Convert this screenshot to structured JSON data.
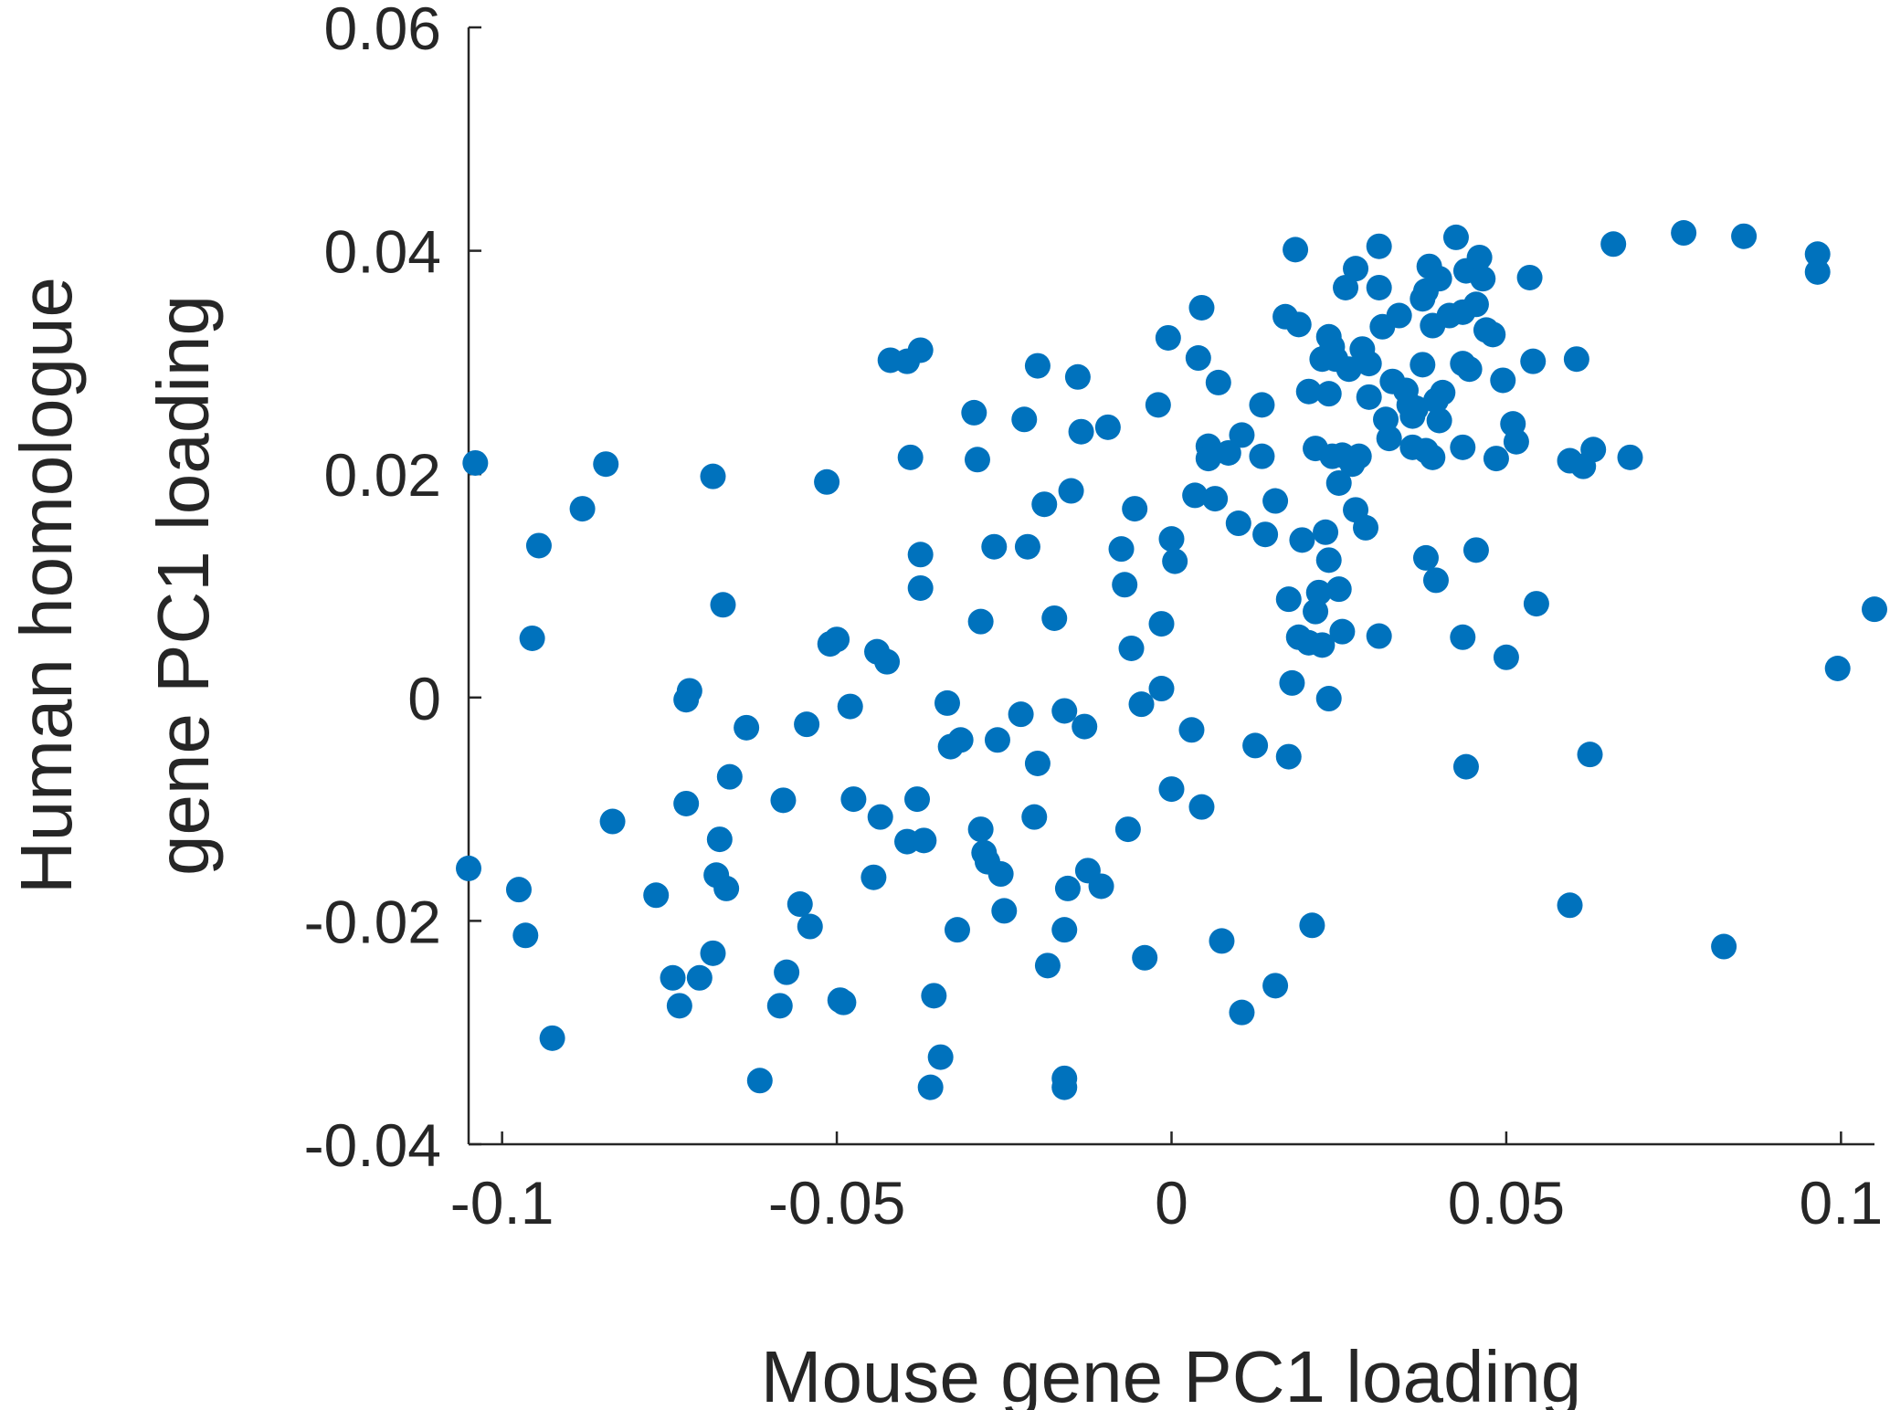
{
  "chart_data": {
    "type": "scatter",
    "xlabel": "Mouse gene PC1 loading",
    "ylabel_lines": [
      "Human homologue",
      "gene PC1 loading"
    ],
    "xlim": [
      -0.105,
      0.105
    ],
    "ylim": [
      -0.04,
      0.06
    ],
    "xticks": [
      -0.1,
      -0.05,
      0,
      0.05,
      0.1
    ],
    "xtick_labels": [
      "-0.1",
      "-0.05",
      "0",
      "0.05",
      "0.1"
    ],
    "yticks": [
      -0.04,
      -0.02,
      0,
      0.02,
      0.04,
      0.06
    ],
    "ytick_labels": [
      "-0.04",
      "-0.02",
      "0",
      "0.02",
      "0.04",
      "0.06"
    ],
    "grid": false,
    "marker_color": "#0072BD",
    "points": [
      [
        -0.104,
        0.021
      ],
      [
        -0.105,
        -0.0153
      ],
      [
        -0.0945,
        0.0136
      ],
      [
        -0.0955,
        0.0053
      ],
      [
        -0.0965,
        -0.0213
      ],
      [
        -0.0975,
        -0.0172
      ],
      [
        -0.0925,
        -0.0305
      ],
      [
        -0.088,
        0.0169
      ],
      [
        -0.0845,
        0.0209
      ],
      [
        -0.0835,
        -0.0111
      ],
      [
        -0.077,
        -0.0177
      ],
      [
        -0.0745,
        -0.0251
      ],
      [
        -0.0735,
        -0.0276
      ],
      [
        -0.0725,
        -0.0002
      ],
      [
        -0.072,
        0.0006
      ],
      [
        -0.0725,
        -0.0095
      ],
      [
        -0.0705,
        -0.0251
      ],
      [
        -0.0685,
        -0.0229
      ],
      [
        -0.0685,
        0.0198
      ],
      [
        -0.068,
        -0.0159
      ],
      [
        -0.0675,
        -0.0127
      ],
      [
        -0.067,
        0.0083
      ],
      [
        -0.0665,
        -0.0171
      ],
      [
        -0.066,
        -0.0071
      ],
      [
        -0.0635,
        -0.0027
      ],
      [
        -0.0615,
        -0.0343
      ],
      [
        -0.0585,
        -0.0276
      ],
      [
        -0.058,
        -0.0092
      ],
      [
        -0.0575,
        -0.0246
      ],
      [
        -0.0555,
        -0.0185
      ],
      [
        -0.054,
        -0.0205
      ],
      [
        -0.0545,
        -0.0024
      ],
      [
        -0.0515,
        0.0193
      ],
      [
        -0.051,
        0.0048
      ],
      [
        -0.05,
        0.0052
      ],
      [
        -0.0495,
        -0.0271
      ],
      [
        -0.049,
        -0.0273
      ],
      [
        -0.048,
        -0.0008
      ],
      [
        -0.0475,
        -0.0091
      ],
      [
        -0.0445,
        -0.0161
      ],
      [
        -0.044,
        0.0041
      ],
      [
        -0.0435,
        -0.0107
      ],
      [
        -0.0425,
        0.0032
      ],
      [
        -0.042,
        0.0302
      ],
      [
        -0.0395,
        0.0301
      ],
      [
        -0.0395,
        -0.0129
      ],
      [
        -0.039,
        0.0215
      ],
      [
        -0.038,
        -0.0091
      ],
      [
        -0.0375,
        0.0311
      ],
      [
        -0.037,
        -0.0128
      ],
      [
        -0.0375,
        0.0128
      ],
      [
        -0.0375,
        0.0098
      ],
      [
        -0.0355,
        -0.0267
      ],
      [
        -0.0345,
        -0.0322
      ],
      [
        -0.036,
        -0.0349
      ],
      [
        -0.0335,
        -0.0005
      ],
      [
        -0.033,
        -0.0044
      ],
      [
        -0.032,
        -0.0208
      ],
      [
        -0.0315,
        -0.0038
      ],
      [
        -0.0295,
        0.0255
      ],
      [
        -0.029,
        0.0213
      ],
      [
        -0.0285,
        -0.0118
      ],
      [
        -0.0285,
        0.0068
      ],
      [
        -0.028,
        -0.0139
      ],
      [
        -0.0275,
        -0.0147
      ],
      [
        -0.0265,
        0.0135
      ],
      [
        -0.026,
        -0.0038
      ],
      [
        -0.0255,
        -0.0158
      ],
      [
        -0.025,
        -0.0191
      ],
      [
        -0.0225,
        -0.0015
      ],
      [
        -0.022,
        0.0249
      ],
      [
        -0.0215,
        0.0135
      ],
      [
        -0.0205,
        -0.0107
      ],
      [
        -0.02,
        -0.0059
      ],
      [
        -0.02,
        0.0297
      ],
      [
        -0.019,
        0.0173
      ],
      [
        -0.0185,
        -0.024
      ],
      [
        -0.0175,
        0.0071
      ],
      [
        -0.016,
        -0.0012
      ],
      [
        -0.016,
        -0.0208
      ],
      [
        -0.016,
        -0.0341
      ],
      [
        -0.016,
        -0.0349
      ],
      [
        -0.0155,
        -0.0171
      ],
      [
        -0.015,
        0.0185
      ],
      [
        -0.014,
        0.0287
      ],
      [
        -0.0135,
        0.0238
      ],
      [
        -0.013,
        -0.0026
      ],
      [
        -0.0125,
        -0.0155
      ],
      [
        -0.0105,
        -0.0169
      ],
      [
        -0.0095,
        0.0242
      ],
      [
        -0.0075,
        0.0133
      ],
      [
        -0.007,
        0.0101
      ],
      [
        -0.0065,
        -0.0118
      ],
      [
        -0.006,
        0.0044
      ],
      [
        -0.0055,
        0.0169
      ],
      [
        -0.0045,
        -0.0006
      ],
      [
        -0.004,
        -0.0233
      ],
      [
        -0.002,
        0.0262
      ],
      [
        -0.0015,
        0.0066
      ],
      [
        -0.0015,
        0.0008
      ],
      [
        -0.0005,
        0.0322
      ],
      [
        0.0,
        0.0142
      ],
      [
        0.0,
        -0.0082
      ],
      [
        0.0005,
        0.0122
      ],
      [
        0.003,
        -0.0029
      ],
      [
        0.0035,
        0.0181
      ],
      [
        0.0045,
        0.0349
      ],
      [
        0.004,
        0.0304
      ],
      [
        0.0045,
        -0.0098
      ],
      [
        0.0055,
        0.0225
      ],
      [
        0.0055,
        0.0214
      ],
      [
        0.0065,
        0.0178
      ],
      [
        0.007,
        0.0282
      ],
      [
        0.0075,
        -0.0218
      ],
      [
        0.0085,
        0.0219
      ],
      [
        0.01,
        0.0156
      ],
      [
        0.0105,
        0.0235
      ],
      [
        0.0105,
        -0.0282
      ],
      [
        0.0125,
        -0.0043
      ],
      [
        0.0135,
        0.0262
      ],
      [
        0.0135,
        0.0216
      ],
      [
        0.014,
        0.0146
      ],
      [
        0.0155,
        0.0176
      ],
      [
        0.0155,
        -0.0258
      ],
      [
        0.017,
        0.0341
      ],
      [
        0.0175,
        0.0088
      ],
      [
        0.0175,
        -0.0053
      ],
      [
        0.018,
        0.0013
      ],
      [
        0.0185,
        0.0401
      ],
      [
        0.019,
        0.0334
      ],
      [
        0.0195,
        0.0141
      ],
      [
        0.019,
        0.0054
      ],
      [
        0.0205,
        0.0274
      ],
      [
        0.0205,
        0.0049
      ],
      [
        0.021,
        -0.0204
      ],
      [
        0.0215,
        0.0223
      ],
      [
        0.0215,
        0.0077
      ],
      [
        0.022,
        0.0094
      ],
      [
        0.0225,
        0.0047
      ],
      [
        0.0225,
        0.0303
      ],
      [
        0.0235,
        0.0272
      ],
      [
        0.023,
        0.0148
      ],
      [
        0.0235,
        0.0123
      ],
      [
        0.0235,
        0.0323
      ],
      [
        0.0235,
        -0.0001
      ],
      [
        0.024,
        0.0314
      ],
      [
        0.024,
        0.0216
      ],
      [
        0.0245,
        0.0303
      ],
      [
        0.025,
        0.0192
      ],
      [
        0.025,
        0.0097
      ],
      [
        0.0255,
        0.0217
      ],
      [
        0.0255,
        0.0059
      ],
      [
        0.026,
        0.0367
      ],
      [
        0.0265,
        0.0294
      ],
      [
        0.027,
        0.0209
      ],
      [
        0.0275,
        0.0384
      ],
      [
        0.0275,
        0.0168
      ],
      [
        0.028,
        0.0216
      ],
      [
        0.0285,
        0.0312
      ],
      [
        0.029,
        0.0152
      ],
      [
        0.0295,
        0.0299
      ],
      [
        0.0295,
        0.0269
      ],
      [
        0.031,
        0.0404
      ],
      [
        0.031,
        0.0367
      ],
      [
        0.031,
        0.0055
      ],
      [
        0.0315,
        0.0332
      ],
      [
        0.032,
        0.0249
      ],
      [
        0.0325,
        0.0232
      ],
      [
        0.033,
        0.0283
      ],
      [
        0.034,
        0.0342
      ],
      [
        0.035,
        0.0275
      ],
      [
        0.0355,
        0.0262
      ],
      [
        0.036,
        0.0252
      ],
      [
        0.036,
        0.0224
      ],
      [
        0.0365,
        0.0259
      ],
      [
        0.0375,
        0.0298
      ],
      [
        0.0375,
        0.0357
      ],
      [
        0.038,
        0.0364
      ],
      [
        0.0385,
        0.0386
      ],
      [
        0.038,
        0.0221
      ],
      [
        0.038,
        0.0125
      ],
      [
        0.039,
        0.0333
      ],
      [
        0.039,
        0.0215
      ],
      [
        0.0395,
        0.0266
      ],
      [
        0.04,
        0.0375
      ],
      [
        0.0405,
        0.0273
      ],
      [
        0.0395,
        0.0105
      ],
      [
        0.04,
        0.0248
      ],
      [
        0.0415,
        0.0342
      ],
      [
        0.0425,
        0.0412
      ],
      [
        0.0435,
        0.0345
      ],
      [
        0.0435,
        0.0299
      ],
      [
        0.0435,
        0.0224
      ],
      [
        0.0435,
        0.0054
      ],
      [
        0.044,
        0.0382
      ],
      [
        0.044,
        -0.0062
      ],
      [
        0.0445,
        0.0294
      ],
      [
        0.0455,
        0.0352
      ],
      [
        0.0455,
        0.0132
      ],
      [
        0.046,
        0.0394
      ],
      [
        0.0465,
        0.0375
      ],
      [
        0.047,
        0.0329
      ],
      [
        0.048,
        0.0325
      ],
      [
        0.0485,
        0.0214
      ],
      [
        0.0495,
        0.0284
      ],
      [
        0.05,
        0.0036
      ],
      [
        0.051,
        0.0245
      ],
      [
        0.0515,
        0.0229
      ],
      [
        0.0535,
        0.0376
      ],
      [
        0.054,
        0.0301
      ],
      [
        0.0545,
        0.0084
      ],
      [
        0.0595,
        0.0212
      ],
      [
        0.0595,
        -0.0186
      ],
      [
        0.0605,
        0.0303
      ],
      [
        0.0615,
        0.0207
      ],
      [
        0.0625,
        -0.0051
      ],
      [
        0.063,
        0.0222
      ],
      [
        0.066,
        0.0406
      ],
      [
        0.0685,
        0.0215
      ],
      [
        0.0765,
        0.0416
      ],
      [
        0.0825,
        -0.0223
      ],
      [
        0.0855,
        0.0413
      ],
      [
        0.0965,
        0.0397
      ],
      [
        0.0965,
        0.0381
      ],
      [
        0.0995,
        0.0026
      ],
      [
        0.105,
        0.0079
      ]
    ]
  }
}
